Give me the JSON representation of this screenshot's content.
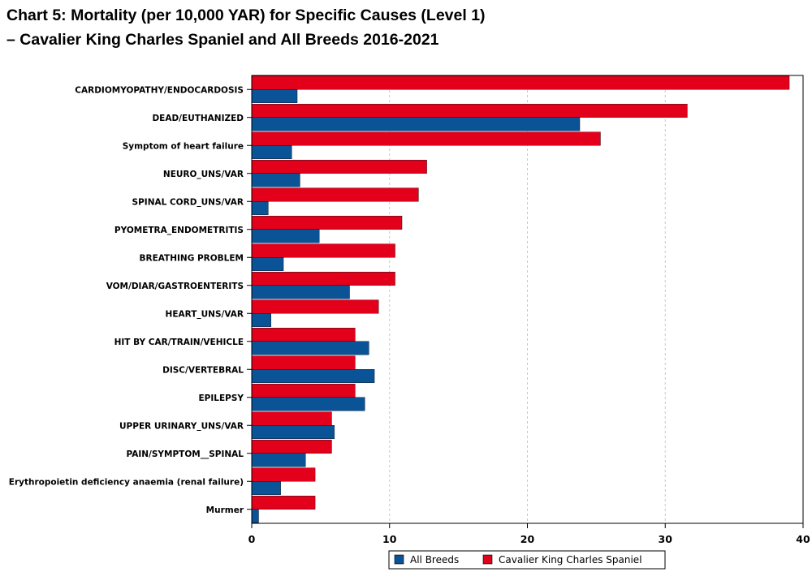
{
  "chart_data": {
    "type": "bar",
    "orientation": "horizontal",
    "title_line1": "Chart 5: Mortality (per 10,000 YAR) for Specific Causes (Level 1)",
    "title_line2": "–  Cavalier King Charles Spaniel and All Breeds 2016-2021",
    "categories": [
      "CARDIOMYOPATHY/ENDOCARDOSIS",
      "DEAD/EUTHANIZED",
      "Symptom of heart failure",
      "NEURO_UNS/VAR",
      "SPINAL CORD_UNS/VAR",
      "PYOMETRA_ENDOMETRITIS",
      "BREATHING PROBLEM",
      "VOM/DIAR/GASTROENTERITS",
      "HEART_UNS/VAR",
      "HIT BY CAR/TRAIN/VEHICLE",
      "DISC/VERTEBRAL",
      "EPILEPSY",
      "UPPER URINARY_UNS/VAR",
      "PAIN/SYMPTOM__SPINAL",
      "Erythropoietin deficiency anaemia (renal failure)",
      "Murmer"
    ],
    "series": [
      {
        "name": "Cavalier King Charles Spaniel",
        "color": "#e3001b",
        "values": [
          39.0,
          31.6,
          25.3,
          12.7,
          12.1,
          10.9,
          10.4,
          10.4,
          9.2,
          7.5,
          7.5,
          7.5,
          5.8,
          5.8,
          4.6,
          4.6
        ]
      },
      {
        "name": "All Breeds",
        "color": "#0a5396",
        "values": [
          3.3,
          23.8,
          2.9,
          3.5,
          1.2,
          4.9,
          2.3,
          7.1,
          1.4,
          8.5,
          8.9,
          8.2,
          6.0,
          3.9,
          2.1,
          0.5
        ]
      }
    ],
    "xlim": [
      0,
      40
    ],
    "xticks": [
      "0",
      "10",
      "20",
      "30",
      "40"
    ],
    "legend": [
      "All Breeds",
      "Cavalier King Charles Spaniel"
    ],
    "legend_position": "bottom",
    "grid": "vertical dashed"
  }
}
